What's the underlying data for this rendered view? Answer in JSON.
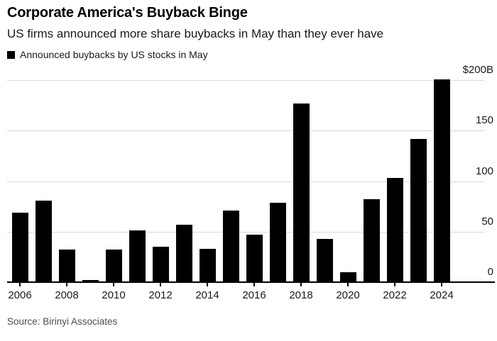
{
  "header": {
    "title": "Corporate America's Buyback Binge",
    "subtitle": "US firms announced more share buybacks in May than they ever have"
  },
  "legend": {
    "label": "Announced buybacks by US stocks in May",
    "swatch_color": "#000000"
  },
  "source": "Source: Birinyi Associates",
  "chart_data": {
    "type": "bar",
    "title": "Corporate America's Buyback Binge",
    "subtitle": "US firms announced more share buybacks in May than they ever have",
    "series_name": "Announced buybacks by US stocks in May",
    "unit": "billions of US dollars",
    "categories": [
      2006,
      2007,
      2008,
      2009,
      2010,
      2011,
      2012,
      2013,
      2014,
      2015,
      2016,
      2017,
      2018,
      2019,
      2020,
      2021,
      2022,
      2023,
      2024
    ],
    "values": [
      69,
      81,
      32,
      2,
      32,
      51,
      35,
      57,
      33,
      71,
      47,
      79,
      177,
      43,
      10,
      82,
      103,
      142,
      201
    ],
    "xlabel": "",
    "ylabel": "",
    "ylim": [
      0,
      205
    ],
    "y_ticks": [
      {
        "value": 200,
        "label": "$200B"
      },
      {
        "value": 150,
        "label": "150"
      },
      {
        "value": 100,
        "label": "100"
      },
      {
        "value": 50,
        "label": "50"
      },
      {
        "value": 0,
        "label": "0"
      }
    ],
    "x_tick_years": [
      2006,
      2008,
      2010,
      2012,
      2014,
      2016,
      2018,
      2020,
      2022,
      2024
    ],
    "grid": "horizontal",
    "legend_position": "top-left",
    "bar_color": "#000000",
    "gridline_color": "#d9d9d9",
    "axis_color": "#000000",
    "source": "Source: Birinyi Associates"
  }
}
